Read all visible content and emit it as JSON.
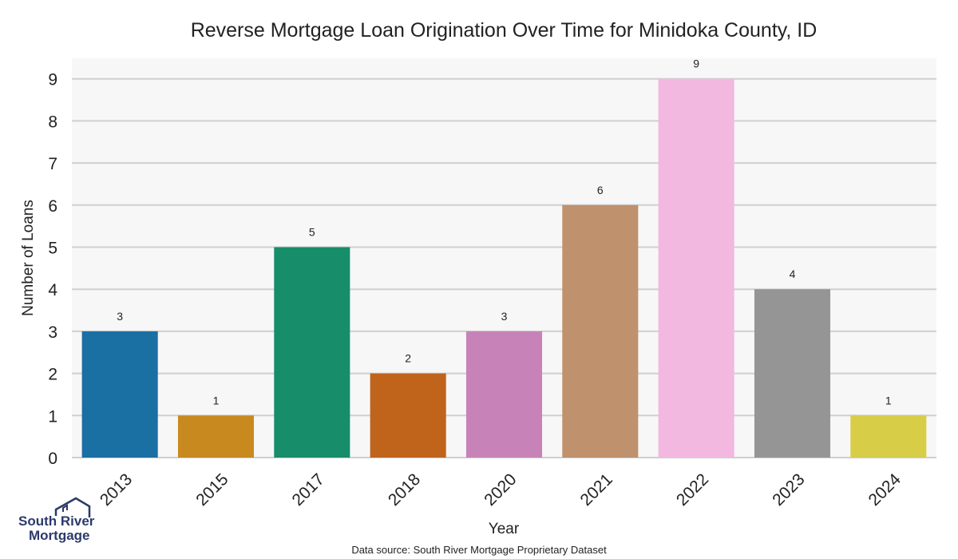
{
  "chart_data": {
    "type": "bar",
    "title": "Reverse Mortgage Loan Origination Over Time for Minidoka County, ID",
    "xlabel": "Year",
    "ylabel": "Number of Loans",
    "categories": [
      "2013",
      "2015",
      "2017",
      "2018",
      "2020",
      "2021",
      "2022",
      "2023",
      "2024"
    ],
    "values": [
      3,
      1,
      5,
      2,
      3,
      6,
      9,
      4,
      1
    ],
    "colors": [
      "#1a6fa3",
      "#c88a1f",
      "#178d6a",
      "#c0631b",
      "#c783b8",
      "#bf916d",
      "#f2b8e0",
      "#959595",
      "#d7cd47"
    ],
    "ylim": [
      0,
      9.5
    ],
    "yticks": [
      0,
      1,
      2,
      3,
      4,
      5,
      6,
      7,
      8,
      9
    ],
    "grid": true,
    "background": "#f7f7f7"
  },
  "source_note": "Data source: South River Mortgage Proprietary Dataset",
  "logo": {
    "line1": "South River",
    "line2": "Mortgage",
    "color": "#2b3a6b"
  }
}
